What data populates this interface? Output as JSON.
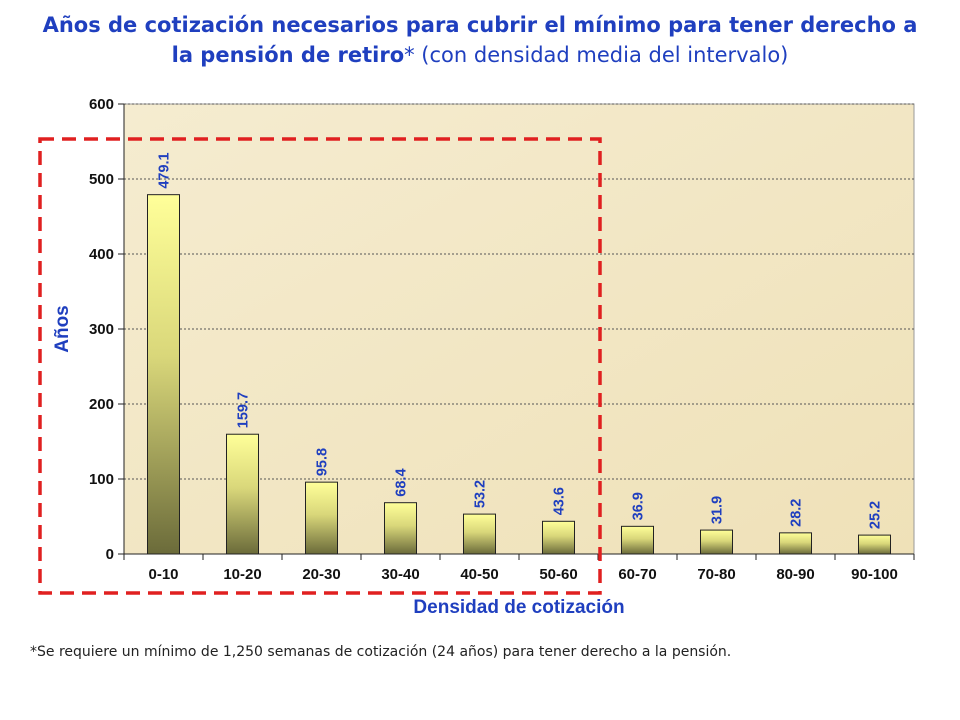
{
  "title": {
    "bold": "Años de cotización necesarios para cubrir el mínimo para tener derecho a la pensión de retiro",
    "normal": "* (con densidad media del intervalo)"
  },
  "footnote": "*Se requiere un mínimo de 1,250 semanas de cotización (24 años) para tener derecho a la pensión.",
  "chart_data": {
    "type": "bar",
    "title": "Años de cotización necesarios para cubrir el mínimo para tener derecho a la pensión de retiro* (con densidad media del intervalo)",
    "xlabel": "Densidad de cotización",
    "ylabel": "Años",
    "categories": [
      "0-10",
      "10-20",
      "20-30",
      "30-40",
      "40-50",
      "50-60",
      "60-70",
      "70-80",
      "80-90",
      "90-100"
    ],
    "values": [
      479.1,
      159.7,
      95.8,
      68.4,
      53.2,
      43.6,
      36.9,
      31.9,
      28.2,
      25.2
    ],
    "value_labels": [
      "479.1",
      "159.7",
      "95.8",
      "68.4",
      "53.2",
      "43.6",
      "36.9",
      "31.9",
      "28.2",
      "25.2"
    ],
    "ylim": [
      0,
      600
    ],
    "yticks": [
      0,
      100,
      200,
      300,
      400,
      500,
      600
    ],
    "grid": true,
    "highlight": {
      "categories": [
        "0-10",
        "10-20",
        "20-30",
        "30-40",
        "40-50",
        "50-60"
      ],
      "style": "dashed red box"
    },
    "colors": {
      "plot_bg": "#f2e6c2",
      "bar_top": "#ffff99",
      "bar_bottom": "#6b6b3a",
      "labels": "#1f3fbf",
      "highlight": "#e02020"
    }
  }
}
